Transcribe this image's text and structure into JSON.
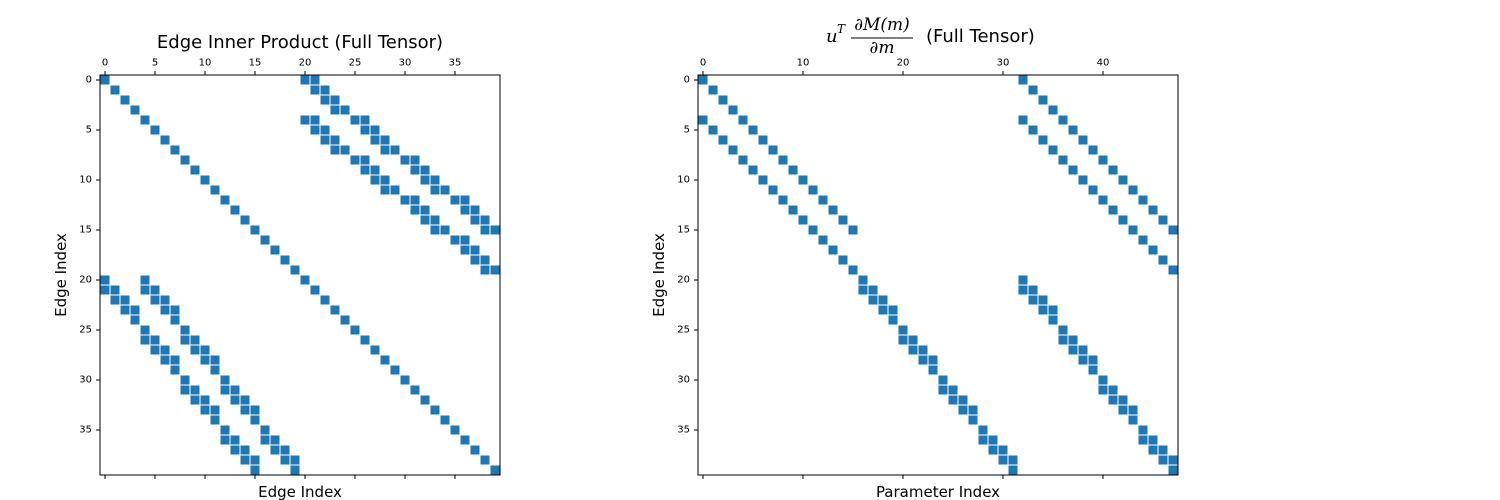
{
  "chart_data": [
    {
      "type": "heatmap",
      "title": "Edge Inner Product (Full Tensor)",
      "xlabel": "Edge Index",
      "ylabel": "Edge Index",
      "n_rows": 40,
      "n_cols": 40,
      "x_ticks": [
        0,
        5,
        10,
        15,
        20,
        25,
        30,
        35
      ],
      "y_ticks": [
        0,
        5,
        10,
        15,
        20,
        25,
        30,
        35
      ],
      "color": "#1f77b4",
      "nonzeros": [
        [
          0,
          0
        ],
        [
          0,
          20
        ],
        [
          0,
          21
        ],
        [
          1,
          1
        ],
        [
          1,
          21
        ],
        [
          1,
          22
        ],
        [
          2,
          2
        ],
        [
          2,
          22
        ],
        [
          2,
          23
        ],
        [
          3,
          3
        ],
        [
          3,
          23
        ],
        [
          3,
          24
        ],
        [
          4,
          4
        ],
        [
          4,
          20
        ],
        [
          4,
          21
        ],
        [
          4,
          25
        ],
        [
          4,
          26
        ],
        [
          5,
          5
        ],
        [
          5,
          21
        ],
        [
          5,
          22
        ],
        [
          5,
          26
        ],
        [
          5,
          27
        ],
        [
          6,
          6
        ],
        [
          6,
          22
        ],
        [
          6,
          23
        ],
        [
          6,
          27
        ],
        [
          6,
          28
        ],
        [
          7,
          7
        ],
        [
          7,
          23
        ],
        [
          7,
          24
        ],
        [
          7,
          28
        ],
        [
          7,
          29
        ],
        [
          8,
          8
        ],
        [
          8,
          25
        ],
        [
          8,
          26
        ],
        [
          8,
          30
        ],
        [
          8,
          31
        ],
        [
          9,
          9
        ],
        [
          9,
          26
        ],
        [
          9,
          27
        ],
        [
          9,
          31
        ],
        [
          9,
          32
        ],
        [
          10,
          10
        ],
        [
          10,
          27
        ],
        [
          10,
          28
        ],
        [
          10,
          32
        ],
        [
          10,
          33
        ],
        [
          11,
          11
        ],
        [
          11,
          28
        ],
        [
          11,
          29
        ],
        [
          11,
          33
        ],
        [
          11,
          34
        ],
        [
          12,
          12
        ],
        [
          12,
          30
        ],
        [
          12,
          31
        ],
        [
          12,
          35
        ],
        [
          12,
          36
        ],
        [
          13,
          13
        ],
        [
          13,
          31
        ],
        [
          13,
          32
        ],
        [
          13,
          36
        ],
        [
          13,
          37
        ],
        [
          14,
          14
        ],
        [
          14,
          32
        ],
        [
          14,
          33
        ],
        [
          14,
          37
        ],
        [
          14,
          38
        ],
        [
          15,
          15
        ],
        [
          15,
          33
        ],
        [
          15,
          34
        ],
        [
          15,
          38
        ],
        [
          15,
          39
        ],
        [
          16,
          16
        ],
        [
          16,
          35
        ],
        [
          16,
          36
        ],
        [
          17,
          17
        ],
        [
          17,
          36
        ],
        [
          17,
          37
        ],
        [
          18,
          18
        ],
        [
          18,
          37
        ],
        [
          18,
          38
        ],
        [
          19,
          19
        ],
        [
          19,
          38
        ],
        [
          19,
          39
        ],
        [
          20,
          0
        ],
        [
          20,
          4
        ],
        [
          20,
          20
        ],
        [
          21,
          0
        ],
        [
          21,
          1
        ],
        [
          21,
          4
        ],
        [
          21,
          5
        ],
        [
          21,
          21
        ],
        [
          22,
          1
        ],
        [
          22,
          2
        ],
        [
          22,
          5
        ],
        [
          22,
          6
        ],
        [
          22,
          22
        ],
        [
          23,
          2
        ],
        [
          23,
          3
        ],
        [
          23,
          6
        ],
        [
          23,
          7
        ],
        [
          23,
          23
        ],
        [
          24,
          3
        ],
        [
          24,
          7
        ],
        [
          24,
          24
        ],
        [
          25,
          4
        ],
        [
          25,
          8
        ],
        [
          25,
          25
        ],
        [
          26,
          4
        ],
        [
          26,
          5
        ],
        [
          26,
          8
        ],
        [
          26,
          9
        ],
        [
          26,
          26
        ],
        [
          27,
          5
        ],
        [
          27,
          6
        ],
        [
          27,
          9
        ],
        [
          27,
          10
        ],
        [
          27,
          27
        ],
        [
          28,
          6
        ],
        [
          28,
          7
        ],
        [
          28,
          10
        ],
        [
          28,
          11
        ],
        [
          28,
          28
        ],
        [
          29,
          7
        ],
        [
          29,
          11
        ],
        [
          29,
          29
        ],
        [
          30,
          8
        ],
        [
          30,
          12
        ],
        [
          30,
          30
        ],
        [
          31,
          8
        ],
        [
          31,
          9
        ],
        [
          31,
          12
        ],
        [
          31,
          13
        ],
        [
          31,
          31
        ],
        [
          32,
          9
        ],
        [
          32,
          10
        ],
        [
          32,
          13
        ],
        [
          32,
          14
        ],
        [
          32,
          32
        ],
        [
          33,
          10
        ],
        [
          33,
          11
        ],
        [
          33,
          14
        ],
        [
          33,
          15
        ],
        [
          33,
          33
        ],
        [
          34,
          11
        ],
        [
          34,
          15
        ],
        [
          34,
          34
        ],
        [
          35,
          12
        ],
        [
          35,
          16
        ],
        [
          35,
          35
        ],
        [
          36,
          12
        ],
        [
          36,
          13
        ],
        [
          36,
          16
        ],
        [
          36,
          17
        ],
        [
          36,
          36
        ],
        [
          37,
          13
        ],
        [
          37,
          14
        ],
        [
          37,
          17
        ],
        [
          37,
          18
        ],
        [
          37,
          37
        ],
        [
          38,
          14
        ],
        [
          38,
          15
        ],
        [
          38,
          18
        ],
        [
          38,
          19
        ],
        [
          38,
          38
        ],
        [
          39,
          15
        ],
        [
          39,
          19
        ],
        [
          39,
          39
        ]
      ]
    },
    {
      "type": "heatmap",
      "title_math": {
        "u": "u",
        "sup": "T",
        "numerator": "∂M(m)",
        "denominator": "∂m"
      },
      "title_suffix": "(Full Tensor)",
      "xlabel": "Parameter Index",
      "ylabel": "Edge Index",
      "n_rows": 40,
      "n_cols": 48,
      "x_ticks": [
        0,
        10,
        20,
        30,
        40
      ],
      "y_ticks": [
        0,
        5,
        10,
        15,
        20,
        25,
        30,
        35
      ],
      "color": "#1f77b4",
      "nonzeros": [
        [
          0,
          0
        ],
        [
          0,
          32
        ],
        [
          1,
          1
        ],
        [
          1,
          33
        ],
        [
          2,
          2
        ],
        [
          2,
          34
        ],
        [
          3,
          3
        ],
        [
          3,
          35
        ],
        [
          4,
          0
        ],
        [
          4,
          4
        ],
        [
          4,
          32
        ],
        [
          4,
          36
        ],
        [
          5,
          1
        ],
        [
          5,
          5
        ],
        [
          5,
          33
        ],
        [
          5,
          37
        ],
        [
          6,
          2
        ],
        [
          6,
          6
        ],
        [
          6,
          34
        ],
        [
          6,
          38
        ],
        [
          7,
          3
        ],
        [
          7,
          7
        ],
        [
          7,
          35
        ],
        [
          7,
          39
        ],
        [
          8,
          4
        ],
        [
          8,
          8
        ],
        [
          8,
          36
        ],
        [
          8,
          40
        ],
        [
          9,
          5
        ],
        [
          9,
          9
        ],
        [
          9,
          37
        ],
        [
          9,
          41
        ],
        [
          10,
          6
        ],
        [
          10,
          10
        ],
        [
          10,
          38
        ],
        [
          10,
          42
        ],
        [
          11,
          7
        ],
        [
          11,
          11
        ],
        [
          11,
          39
        ],
        [
          11,
          43
        ],
        [
          12,
          8
        ],
        [
          12,
          12
        ],
        [
          12,
          40
        ],
        [
          12,
          44
        ],
        [
          13,
          9
        ],
        [
          13,
          13
        ],
        [
          13,
          41
        ],
        [
          13,
          45
        ],
        [
          14,
          10
        ],
        [
          14,
          14
        ],
        [
          14,
          42
        ],
        [
          14,
          46
        ],
        [
          15,
          11
        ],
        [
          15,
          15
        ],
        [
          15,
          43
        ],
        [
          15,
          47
        ],
        [
          16,
          12
        ],
        [
          16,
          44
        ],
        [
          17,
          13
        ],
        [
          17,
          45
        ],
        [
          18,
          14
        ],
        [
          18,
          46
        ],
        [
          19,
          15
        ],
        [
          19,
          47
        ],
        [
          20,
          16
        ],
        [
          20,
          32
        ],
        [
          21,
          16
        ],
        [
          21,
          17
        ],
        [
          21,
          32
        ],
        [
          21,
          33
        ],
        [
          22,
          17
        ],
        [
          22,
          18
        ],
        [
          22,
          33
        ],
        [
          22,
          34
        ],
        [
          23,
          18
        ],
        [
          23,
          19
        ],
        [
          23,
          34
        ],
        [
          23,
          35
        ],
        [
          24,
          19
        ],
        [
          24,
          35
        ],
        [
          25,
          20
        ],
        [
          25,
          36
        ],
        [
          26,
          20
        ],
        [
          26,
          21
        ],
        [
          26,
          36
        ],
        [
          26,
          37
        ],
        [
          27,
          21
        ],
        [
          27,
          22
        ],
        [
          27,
          37
        ],
        [
          27,
          38
        ],
        [
          28,
          22
        ],
        [
          28,
          23
        ],
        [
          28,
          38
        ],
        [
          28,
          39
        ],
        [
          29,
          23
        ],
        [
          29,
          39
        ],
        [
          30,
          24
        ],
        [
          30,
          40
        ],
        [
          31,
          24
        ],
        [
          31,
          25
        ],
        [
          31,
          40
        ],
        [
          31,
          41
        ],
        [
          32,
          25
        ],
        [
          32,
          26
        ],
        [
          32,
          41
        ],
        [
          32,
          42
        ],
        [
          33,
          26
        ],
        [
          33,
          27
        ],
        [
          33,
          42
        ],
        [
          33,
          43
        ],
        [
          34,
          27
        ],
        [
          34,
          43
        ],
        [
          35,
          28
        ],
        [
          35,
          44
        ],
        [
          36,
          28
        ],
        [
          36,
          29
        ],
        [
          36,
          44
        ],
        [
          36,
          45
        ],
        [
          37,
          29
        ],
        [
          37,
          30
        ],
        [
          37,
          45
        ],
        [
          37,
          46
        ],
        [
          38,
          30
        ],
        [
          38,
          31
        ],
        [
          38,
          46
        ],
        [
          38,
          47
        ],
        [
          39,
          31
        ],
        [
          39,
          47
        ]
      ]
    }
  ]
}
